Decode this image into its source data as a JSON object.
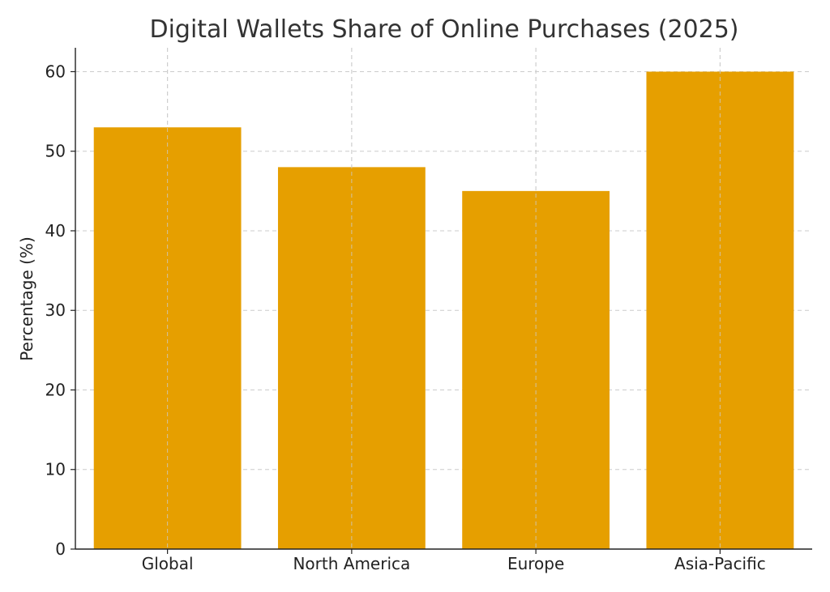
{
  "chart_data": {
    "type": "bar",
    "title": "Digital Wallets Share of Online Purchases (2025)",
    "xlabel": "",
    "ylabel": "Percentage (%)",
    "categories": [
      "Global",
      "North America",
      "Europe",
      "Asia-Pacific"
    ],
    "values": [
      53,
      48,
      45,
      60
    ],
    "ylim": [
      0,
      63
    ],
    "yticks": [
      0,
      10,
      20,
      30,
      40,
      50,
      60
    ],
    "grid": true,
    "bar_color": "#E69F00",
    "grid_color": "#cccccc",
    "axis_color": "#222222"
  }
}
